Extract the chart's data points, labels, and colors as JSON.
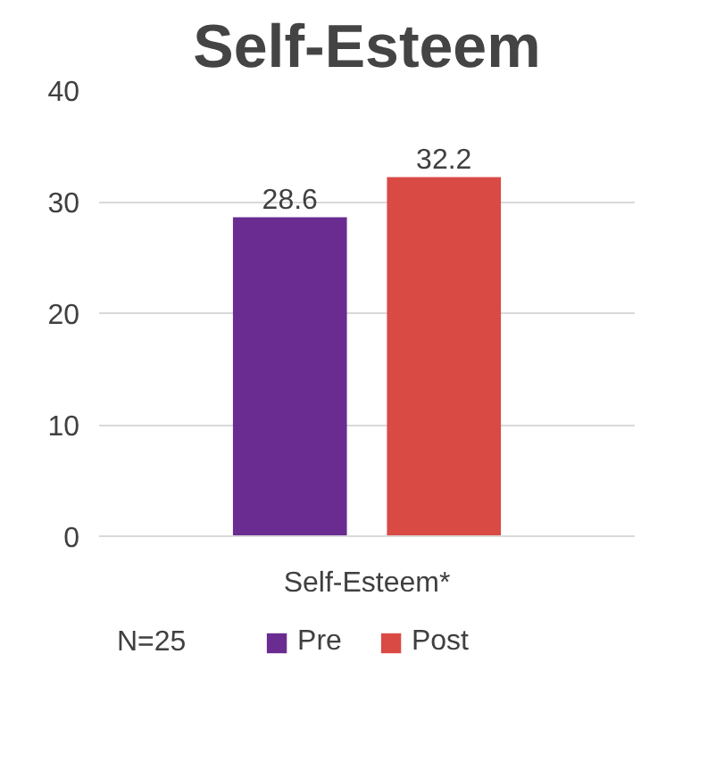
{
  "chart_data": {
    "type": "bar",
    "title": "Self-Esteem",
    "categories": [
      "Self-Esteem*"
    ],
    "series": [
      {
        "name": "Pre",
        "color": "#6a2c91",
        "values": [
          28.6
        ]
      },
      {
        "name": "Post",
        "color": "#d94a45",
        "values": [
          32.2
        ]
      }
    ],
    "ylim": [
      0,
      40
    ],
    "yticks": [
      0,
      10,
      20,
      30,
      40
    ],
    "grid": "y",
    "legend": "bottom",
    "data_labels": true,
    "annotations": [
      "N=25"
    ]
  }
}
